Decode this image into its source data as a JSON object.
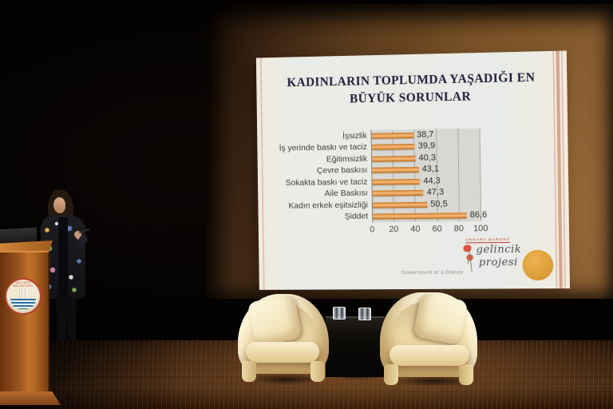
{
  "slide": {
    "title_line1": "KADINLARIN TOPLUMDA YAŞADIĞI EN",
    "title_line2": "BÜYÜK SORUNLAR",
    "source_text": "Government at a Glance",
    "logo": {
      "org_text": "ANKARA BAROSU",
      "name_line1": "gelincik",
      "name_line2": "projesi",
      "poppy_icon": "red-poppy-flower-icon",
      "circle_icon": "orange-circle-decoration",
      "circle_color": "#df9e38",
      "poppy_color": "#c0392b"
    }
  },
  "chart_data": {
    "type": "bar",
    "orientation": "horizontal",
    "title": "KADINLARIN TOPLUMDA YAŞADIĞI EN BÜYÜK SORUNLAR",
    "categories": [
      "İşsizlik",
      "İş yerinde baskı ve taciz",
      "Eğitimsizlik",
      "Çevre baskısı",
      "Sokakta baskı ve taciz",
      "Aile Baskısı",
      "Kadın erkek eşitsizliği",
      "Şiddet"
    ],
    "values": [
      38.7,
      39.9,
      40.3,
      43.1,
      44.3,
      47.3,
      50.5,
      86.6
    ],
    "value_labels": [
      "38,7",
      "39,9",
      "40,3",
      "43,1",
      "44,3",
      "47,3",
      "50,5",
      "86,6"
    ],
    "xlabel": "",
    "ylabel": "",
    "xlim": [
      0,
      100
    ],
    "x_ticks": [
      0,
      20,
      40,
      60,
      80,
      100
    ],
    "grid": true,
    "legend": false,
    "bar_color": "#dd9750",
    "plot_bg": "#d8d7d2"
  },
  "podium": {
    "emblem_text": "MALTEPE BELEDİYESİ"
  }
}
